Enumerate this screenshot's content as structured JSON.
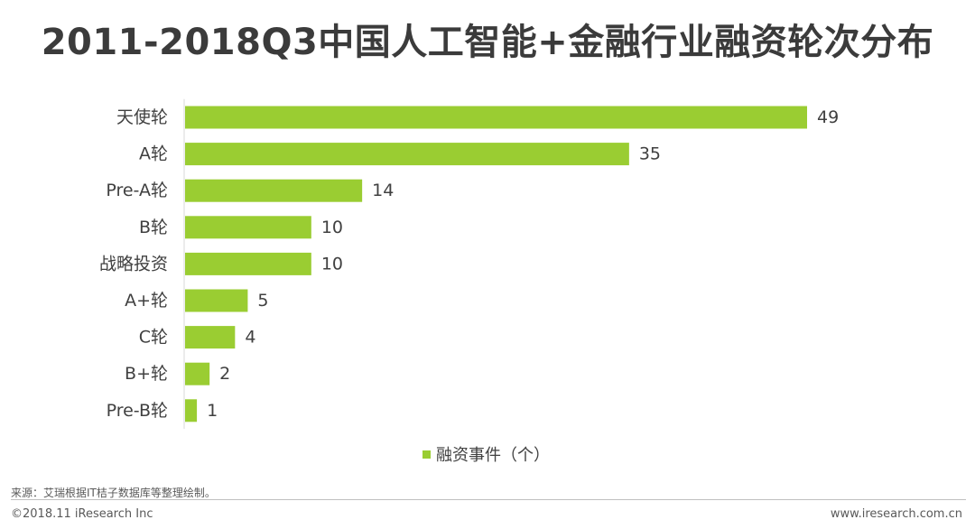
{
  "page": {
    "title": "2011-2018Q3中国人工智能+金融行业融资轮次分布",
    "source": "来源：艾瑞根据IT桔子数据库等整理绘制。",
    "copyright": "©2018.11 iResearch Inc",
    "website": "www.iresearch.com.cn"
  },
  "colors": {
    "bar": "#9acd32",
    "axis": "#d9d9d9"
  },
  "chart_data": {
    "type": "bar",
    "orientation": "horizontal",
    "title": "2011-2018Q3中国人工智能+金融行业融资轮次分布",
    "categories": [
      "天使轮",
      "A轮",
      "Pre-A轮",
      "B轮",
      "战略投资",
      "A+轮",
      "C轮",
      "B+轮",
      "Pre-B轮"
    ],
    "series": [
      {
        "name": "融资事件（个）",
        "values": [
          49,
          35,
          14,
          10,
          10,
          5,
          4,
          2,
          1
        ]
      }
    ],
    "xlim": [
      0,
      49
    ],
    "grid": false,
    "legend_position": "bottom",
    "data_labels": true
  }
}
